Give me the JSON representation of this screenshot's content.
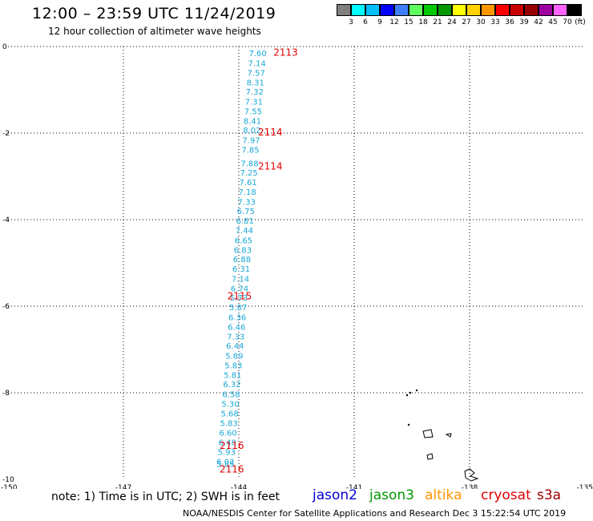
{
  "header": {
    "title": "12:00 – 23:59 UTC 11/24/2019",
    "subtitle": "12 hour collection of altimeter wave heights"
  },
  "legend": {
    "unit": "(ft)",
    "items": [
      {
        "label": "",
        "color": "#7f7f7f"
      },
      {
        "label": "3",
        "color": "#00ffff"
      },
      {
        "label": "6",
        "color": "#00bfff"
      },
      {
        "label": "9",
        "color": "#0000ff"
      },
      {
        "label": "12",
        "color": "#3f7fff"
      },
      {
        "label": "15",
        "color": "#5fff5f"
      },
      {
        "label": "18",
        "color": "#00c800"
      },
      {
        "label": "21",
        "color": "#009600"
      },
      {
        "label": "24",
        "color": "#ffff00"
      },
      {
        "label": "27",
        "color": "#ffd200"
      },
      {
        "label": "30",
        "color": "#ff9600"
      },
      {
        "label": "33",
        "color": "#ff0000"
      },
      {
        "label": "36",
        "color": "#c80000"
      },
      {
        "label": "39",
        "color": "#960000"
      },
      {
        "label": "42",
        "color": "#a000a0"
      },
      {
        "label": "45",
        "color": "#ff64ff"
      },
      {
        "label": "70",
        "color": "#000000"
      }
    ]
  },
  "chart_data": {
    "type": "scatter",
    "xlim": [
      -150,
      -135
    ],
    "ylim": [
      -10,
      0
    ],
    "x_ticks": [
      "-150",
      "-147",
      "-144",
      "-141",
      "-138",
      "-135"
    ],
    "y_ticks": [
      "0",
      "-2",
      "-4",
      "-6",
      "-8",
      "-10"
    ],
    "grid": true,
    "wave_heights": {
      "color": "#19a7d6",
      "points": [
        {
          "x": -143.74,
          "y": -0.15,
          "v": "7.60"
        },
        {
          "x": -143.76,
          "y": -0.38,
          "v": "7.14"
        },
        {
          "x": -143.78,
          "y": -0.6,
          "v": "7.57"
        },
        {
          "x": -143.8,
          "y": -0.82,
          "v": "8.31"
        },
        {
          "x": -143.82,
          "y": -1.04,
          "v": "7.32"
        },
        {
          "x": -143.84,
          "y": -1.27,
          "v": "7.31"
        },
        {
          "x": -143.86,
          "y": -1.49,
          "v": "7.55"
        },
        {
          "x": -143.88,
          "y": -1.71,
          "v": "8.41"
        },
        {
          "x": -143.89,
          "y": -1.93,
          "v": "8.02"
        },
        {
          "x": -143.91,
          "y": -2.16,
          "v": "7.97"
        },
        {
          "x": -143.93,
          "y": -2.38,
          "v": "7.85"
        },
        {
          "x": -143.95,
          "y": -2.69,
          "v": "7.88"
        },
        {
          "x": -143.97,
          "y": -2.91,
          "v": "7.25"
        },
        {
          "x": -143.99,
          "y": -3.13,
          "v": "7.61"
        },
        {
          "x": -144.01,
          "y": -3.35,
          "v": "7.18"
        },
        {
          "x": -144.03,
          "y": -3.58,
          "v": "7.33"
        },
        {
          "x": -144.05,
          "y": -3.8,
          "v": "6.75"
        },
        {
          "x": -144.07,
          "y": -4.02,
          "v": "6.81"
        },
        {
          "x": -144.09,
          "y": -4.24,
          "v": "7.44"
        },
        {
          "x": -144.11,
          "y": -4.47,
          "v": "6.65"
        },
        {
          "x": -144.13,
          "y": -4.69,
          "v": "6.83"
        },
        {
          "x": -144.15,
          "y": -4.91,
          "v": "6.88"
        },
        {
          "x": -144.17,
          "y": -5.13,
          "v": "6.31"
        },
        {
          "x": -144.19,
          "y": -5.36,
          "v": "7.14"
        },
        {
          "x": -144.21,
          "y": -5.58,
          "v": "6.74"
        },
        {
          "x": -144.23,
          "y": -5.8,
          "v": "5.73"
        },
        {
          "x": -144.25,
          "y": -6.02,
          "v": "5.87"
        },
        {
          "x": -144.27,
          "y": -6.25,
          "v": "6.36"
        },
        {
          "x": -144.29,
          "y": -6.47,
          "v": "6.46"
        },
        {
          "x": -144.31,
          "y": -6.69,
          "v": "7.33"
        },
        {
          "x": -144.33,
          "y": -6.91,
          "v": "6.44"
        },
        {
          "x": -144.35,
          "y": -7.14,
          "v": "5.89"
        },
        {
          "x": -144.37,
          "y": -7.36,
          "v": "5.83"
        },
        {
          "x": -144.39,
          "y": -7.58,
          "v": "5.81"
        },
        {
          "x": -144.41,
          "y": -7.8,
          "v": "6.32"
        },
        {
          "x": -144.43,
          "y": -8.03,
          "v": "6.58"
        },
        {
          "x": -144.45,
          "y": -8.25,
          "v": "5.30"
        },
        {
          "x": -144.47,
          "y": -8.47,
          "v": "5.68"
        },
        {
          "x": -144.49,
          "y": -8.69,
          "v": "5.83"
        },
        {
          "x": -144.51,
          "y": -8.92,
          "v": "6.60"
        },
        {
          "x": -144.53,
          "y": -9.14,
          "v": "6.48"
        },
        {
          "x": -144.55,
          "y": -9.36,
          "v": "5.93"
        },
        {
          "x": -144.58,
          "y": -9.58,
          "v": "6.03"
        },
        {
          "x": -144.58,
          "y": -9.64,
          "v": "5.85"
        }
      ]
    },
    "time_labels": {
      "color": "#e00000",
      "points": [
        {
          "x": -143.1,
          "y": -0.12,
          "v": "2113"
        },
        {
          "x": -143.5,
          "y": -1.96,
          "v": "2114"
        },
        {
          "x": -143.5,
          "y": -2.75,
          "v": "2114"
        },
        {
          "x": -144.3,
          "y": -5.75,
          "v": "2115"
        },
        {
          "x": -144.5,
          "y": -9.2,
          "v": "2116"
        },
        {
          "x": -144.5,
          "y": -9.75,
          "v": "2116"
        }
      ]
    }
  },
  "footer": {
    "note": "note:  1) Time is in UTC;  2) SWH is in feet",
    "satellites": [
      {
        "name": "jason2",
        "color": "#0000dd"
      },
      {
        "name": "jason3",
        "color": "#009600"
      },
      {
        "name": "altika",
        "color": "#ff9600"
      },
      {
        "name": "cryosat",
        "color": "#e00000"
      },
      {
        "name": "s3a",
        "color": "#a00000"
      }
    ],
    "credit": "NOAA/NESDIS Center for Satellite Applications and Research    Dec  3 15:22:54 UTC 2019"
  }
}
